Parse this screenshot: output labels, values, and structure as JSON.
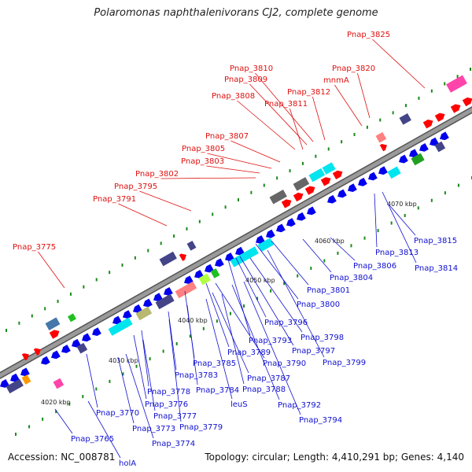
{
  "title": "Polaromonas naphthalenivorans CJ2, complete genome",
  "footer": {
    "accession": "Accession: NC_008781",
    "topology": "Topology: circular; Length: 4,410,291 bp; Genes: 4,140"
  },
  "colors": {
    "backbone": "#9a9a9a",
    "tick": "#1a8a1a",
    "upper_label": "#e01010",
    "lower_label": "#1010d0",
    "forward_arrow": "#ff0000",
    "reverse_arrow": "#0000ee"
  },
  "scale_labels": [
    "4020 kbp",
    "4030 kbp",
    "4040 kbp",
    "4050 kbp",
    "4060 kbp",
    "4070 kbp"
  ],
  "upper_labels": [
    "Pnap_3825",
    "Pnap_3820",
    "mnmA",
    "Pnap_3810",
    "Pnap_3809",
    "Pnap_3812",
    "Pnap_3808",
    "Pnap_3811",
    "Pnap_3807",
    "Pnap_3805",
    "Pnap_3803",
    "Pnap_3802",
    "Pnap_3795",
    "Pnap_3791",
    "Pnap_3775"
  ],
  "lower_labels": [
    "Pnap_3815",
    "Pnap_3813",
    "Pnap_3814",
    "Pnap_3806",
    "Pnap_3804",
    "Pnap_3801",
    "Pnap_3800",
    "Pnap_3796",
    "Pnap_3798",
    "Pnap_3793",
    "Pnap_3797",
    "Pnap_3799",
    "Pnap_3789",
    "Pnap_3790",
    "Pnap_3785",
    "Pnap_3787",
    "Pnap_3783",
    "Pnap_3788",
    "Pnap_3784",
    "Pnap_3778",
    "leuS",
    "Pnap_3792",
    "Pnap_3776",
    "Pnap_3770",
    "Pnap_3777",
    "Pnap_3794",
    "Pnap_3773",
    "Pnap_3779",
    "Pnap_3765",
    "Pnap_3774",
    "holA"
  ]
}
